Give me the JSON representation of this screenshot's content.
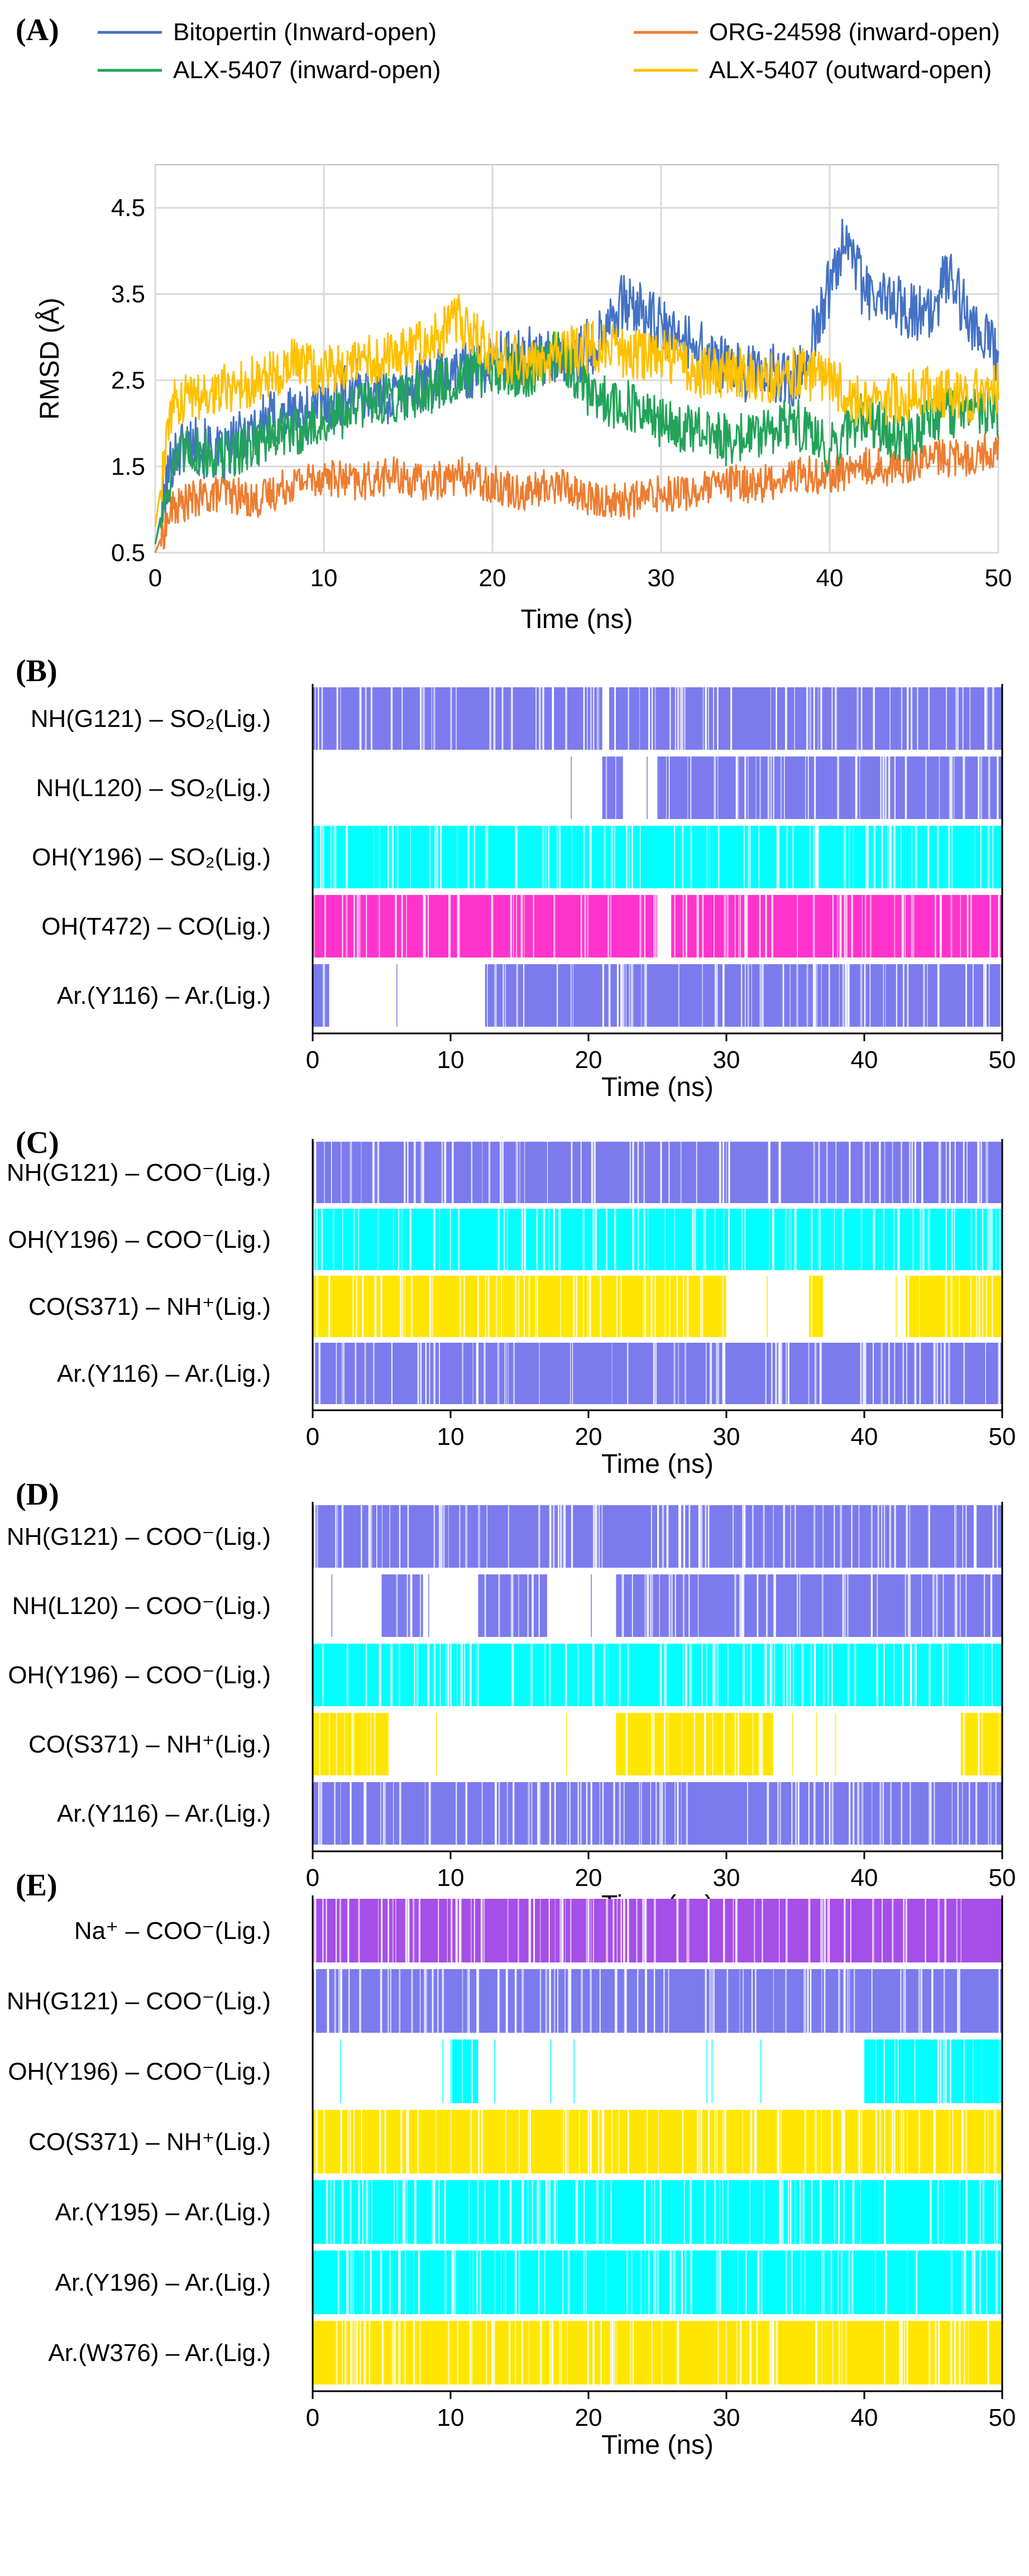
{
  "chart_data": [
    {
      "panel": "(A)",
      "type": "line",
      "xlabel": "Time (ns)",
      "ylabel": "RMSD (Å)",
      "xlim": [
        0,
        50
      ],
      "ylim": [
        0.5,
        5.0
      ],
      "xticks": [
        "0",
        "10",
        "20",
        "30",
        "40",
        "50"
      ],
      "yticks": [
        "0.5",
        "1.5",
        "2.5",
        "3.5",
        "4.5"
      ],
      "grid": true,
      "legend_position": "top",
      "series": [
        {
          "name": "Bitopertin (Inward-open)",
          "color": "#4472c4",
          "x": [
            0,
            1,
            2,
            3,
            4,
            5,
            6,
            8,
            10,
            12,
            14,
            16,
            18,
            20,
            22,
            24,
            26,
            27,
            28,
            30,
            32,
            34,
            36,
            38,
            39,
            40,
            41,
            42,
            44,
            46,
            47,
            48,
            49,
            50
          ],
          "y": [
            0.6,
            1.6,
            1.8,
            1.7,
            1.6,
            1.8,
            2.0,
            2.1,
            2.2,
            2.4,
            2.3,
            2.5,
            2.6,
            2.7,
            2.8,
            2.7,
            2.9,
            3.3,
            3.4,
            3.1,
            2.9,
            2.6,
            2.6,
            2.5,
            3.0,
            3.6,
            4.3,
            3.5,
            3.4,
            3.2,
            3.8,
            3.3,
            3.0,
            2.8
          ]
        },
        {
          "name": "ORG-24598 (inward-open)",
          "color": "#ed7d31",
          "x": [
            0,
            1,
            2,
            4,
            6,
            8,
            10,
            12,
            14,
            16,
            18,
            20,
            22,
            24,
            26,
            28,
            30,
            32,
            34,
            36,
            38,
            40,
            42,
            44,
            46,
            48,
            50
          ],
          "y": [
            0.5,
            1.0,
            1.1,
            1.2,
            1.1,
            1.3,
            1.4,
            1.3,
            1.4,
            1.3,
            1.4,
            1.3,
            1.2,
            1.3,
            1.1,
            1.1,
            1.2,
            1.2,
            1.3,
            1.3,
            1.4,
            1.4,
            1.5,
            1.5,
            1.6,
            1.6,
            1.7
          ]
        },
        {
          "name": "ALX-5407 (inward-open)",
          "color": "#23a35a",
          "x": [
            0,
            1,
            2,
            4,
            6,
            8,
            10,
            12,
            14,
            16,
            18,
            20,
            22,
            24,
            26,
            28,
            30,
            32,
            34,
            36,
            38,
            40,
            42,
            44,
            46,
            48,
            50
          ],
          "y": [
            0.6,
            1.5,
            1.7,
            1.6,
            1.8,
            1.9,
            2.0,
            2.2,
            2.3,
            2.4,
            2.5,
            2.6,
            2.6,
            2.8,
            2.3,
            2.2,
            2.0,
            1.9,
            1.8,
            1.9,
            2.0,
            1.7,
            2.1,
            1.8,
            2.0,
            2.2,
            2.1
          ]
        },
        {
          "name": "ALX-5407 (outward-open)",
          "color": "#ffc000",
          "x": [
            0,
            1,
            2,
            4,
            6,
            8,
            10,
            12,
            14,
            16,
            18,
            20,
            22,
            24,
            26,
            28,
            30,
            32,
            34,
            36,
            38,
            40,
            42,
            44,
            46,
            48,
            50
          ],
          "y": [
            0.8,
            2.2,
            2.3,
            2.4,
            2.5,
            2.7,
            2.6,
            2.7,
            2.8,
            2.9,
            3.2,
            2.8,
            2.7,
            2.8,
            2.9,
            2.8,
            2.8,
            2.6,
            2.6,
            2.5,
            2.6,
            2.5,
            2.2,
            2.3,
            2.4,
            2.3,
            2.4
          ]
        }
      ]
    },
    {
      "panel": "(B)",
      "type": "heatmap",
      "xlabel": "Time (ns)",
      "xlim": [
        0,
        50
      ],
      "xticks": [
        "0",
        "10",
        "20",
        "30",
        "40",
        "50"
      ],
      "rows": [
        {
          "label": "NH(G121) – SO₂(Lig.)",
          "color": "#7b7bee",
          "occupied": [
            [
              0,
              21
            ],
            [
              21.5,
              50
            ]
          ]
        },
        {
          "label": "NH(L120) – SO₂(Lig.)",
          "color": "#7b7bee",
          "occupied": [
            [
              21,
              22.5
            ],
            [
              25,
              50
            ]
          ]
        },
        {
          "label": "OH(Y196) – SO₂(Lig.)",
          "color": "#00ffff",
          "occupied": [
            [
              0,
              50
            ]
          ]
        },
        {
          "label": "OH(T472) – CO(Lig.)",
          "color": "#ff33cc",
          "occupied": [
            [
              0,
              25
            ],
            [
              26,
              50
            ]
          ]
        },
        {
          "label": "Ar.(Y116) – Ar.(Lig.)",
          "color": "#7b7bee",
          "occupied": [
            [
              0,
              1.2
            ],
            [
              12.5,
              50
            ]
          ]
        }
      ]
    },
    {
      "panel": "(C)",
      "type": "heatmap",
      "xlabel": "Time (ns)",
      "xlim": [
        0,
        50
      ],
      "xticks": [
        "0",
        "10",
        "20",
        "30",
        "40",
        "50"
      ],
      "rows": [
        {
          "label": "NH(G121) – COO⁻(Lig.)",
          "color": "#7b7bee",
          "occupied": [
            [
              0,
              50
            ]
          ]
        },
        {
          "label": "OH(Y196) – COO⁻(Lig.)",
          "color": "#00ffff",
          "occupied": [
            [
              0,
              50
            ]
          ]
        },
        {
          "label": "CO(S371) – NH⁺(Lig.)",
          "color": "#ffe600",
          "occupied": [
            [
              0,
              30
            ],
            [
              36,
              37
            ],
            [
              43,
              50
            ]
          ]
        },
        {
          "label": "Ar.(Y116) – Ar.(Lig.)",
          "color": "#7b7bee",
          "occupied": [
            [
              0,
              50
            ]
          ]
        }
      ]
    },
    {
      "panel": "(D)",
      "type": "heatmap",
      "xlabel": "Time (ns)",
      "xlim": [
        0,
        50
      ],
      "xticks": [
        "0",
        "10",
        "20",
        "30",
        "40",
        "50"
      ],
      "rows": [
        {
          "label": "NH(G121) – COO⁻(Lig.)",
          "color": "#7b7bee",
          "occupied": [
            [
              0,
              50
            ]
          ]
        },
        {
          "label": "NH(L120) – COO⁻(Lig.)",
          "color": "#7b7bee",
          "occupied": [
            [
              5,
              8
            ],
            [
              12,
              17
            ],
            [
              22,
              50
            ]
          ]
        },
        {
          "label": "OH(Y196) – COO⁻(Lig.)",
          "color": "#00ffff",
          "occupied": [
            [
              0,
              50
            ]
          ]
        },
        {
          "label": "CO(S371) – NH⁺(Lig.)",
          "color": "#ffe600",
          "occupied": [
            [
              0,
              5.5
            ],
            [
              22,
              33.5
            ],
            [
              47,
              50
            ]
          ]
        },
        {
          "label": "Ar.(Y116) – Ar.(Lig.)",
          "color": "#7b7bee",
          "occupied": [
            [
              0,
              50
            ]
          ]
        }
      ]
    },
    {
      "panel": "(E)",
      "type": "heatmap",
      "xlabel": "Time (ns)",
      "xlim": [
        0,
        50
      ],
      "xticks": [
        "0",
        "10",
        "20",
        "30",
        "40",
        "50"
      ],
      "rows": [
        {
          "label": "Na⁺ – COO⁻(Lig.)",
          "color": "#a64ee8",
          "occupied": [
            [
              0,
              50
            ]
          ]
        },
        {
          "label": "NH(G121) – COO⁻(Lig.)",
          "color": "#7b7bee",
          "occupied": [
            [
              0,
              50
            ]
          ]
        },
        {
          "label": "OH(Y196) – COO⁻(Lig.)",
          "color": "#00ffff",
          "occupied": [
            [
              10,
              12
            ],
            [
              40,
              50
            ]
          ]
        },
        {
          "label": "CO(S371) – NH⁺(Lig.)",
          "color": "#ffe600",
          "occupied": [
            [
              0,
              50
            ]
          ]
        },
        {
          "label": "Ar.(Y195) – Ar.(Lig.)",
          "color": "#00ffff",
          "occupied": [
            [
              0,
              50
            ]
          ]
        },
        {
          "label": "Ar.(Y196) – Ar.(Lig.)",
          "color": "#00ffff",
          "occupied": [
            [
              0,
              50
            ]
          ]
        },
        {
          "label": "Ar.(W376) – Ar.(Lig.)",
          "color": "#ffe600",
          "occupied": [
            [
              0,
              50
            ]
          ]
        }
      ]
    }
  ]
}
